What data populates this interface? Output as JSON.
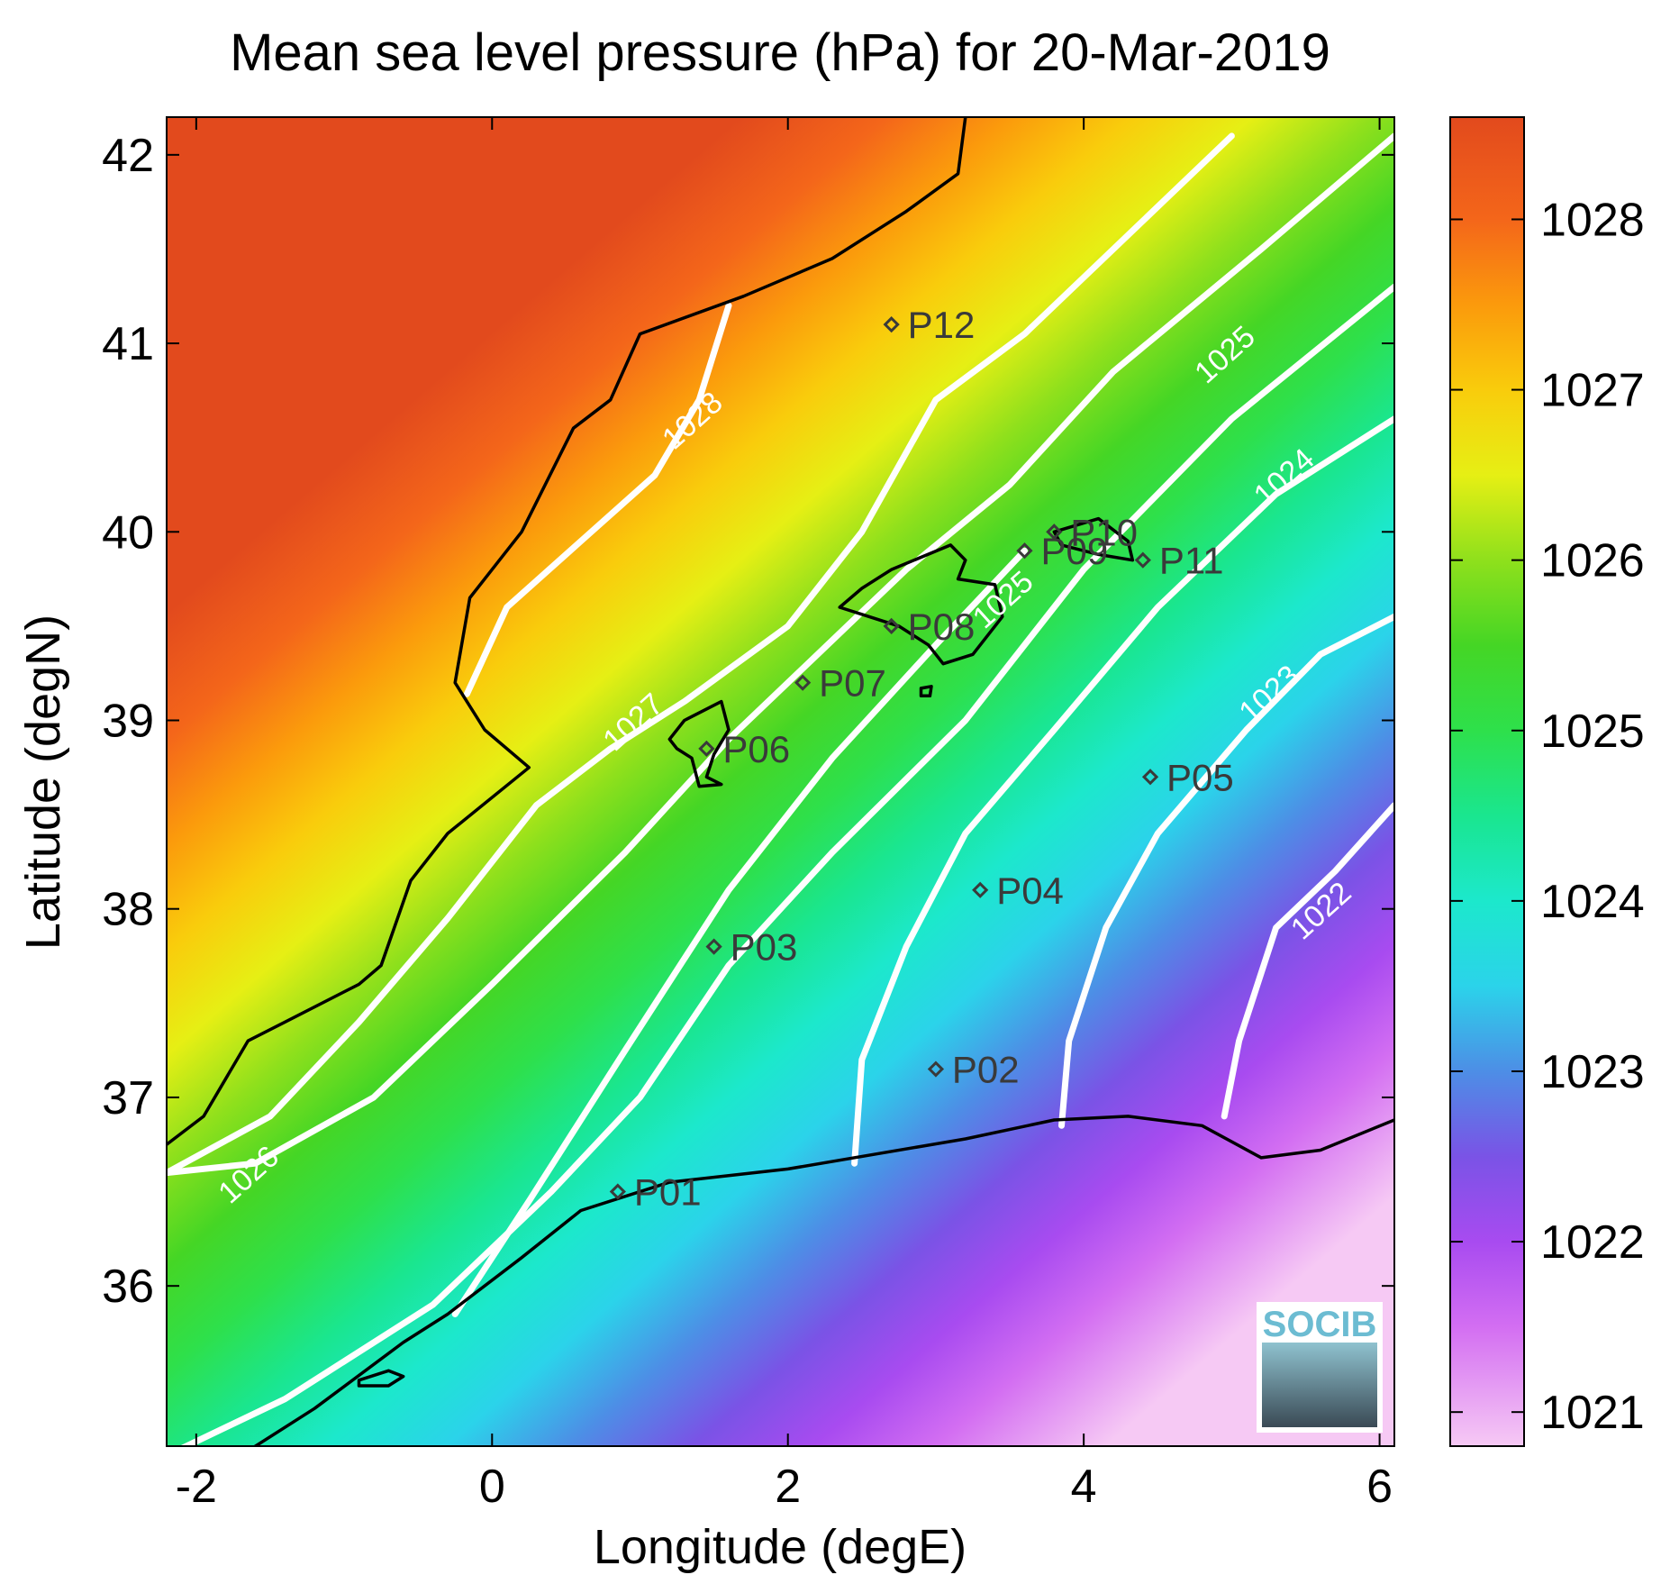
{
  "chart_data": {
    "type": "heatmap",
    "title": "Mean sea level pressure (hPa) for 20-Mar-2019",
    "xlabel": "Longitude (degE)",
    "ylabel": "Latitude (degN)",
    "xlim": [
      -2.2,
      6.1
    ],
    "ylim": [
      35.15,
      42.2
    ],
    "x_ticks": [
      -2,
      0,
      2,
      4,
      6
    ],
    "y_ticks": [
      36,
      37,
      38,
      39,
      40,
      41,
      42
    ],
    "colorbar": {
      "range": [
        1020.8,
        1028.6
      ],
      "ticks": [
        1021,
        1022,
        1023,
        1024,
        1025,
        1026,
        1027,
        1028
      ],
      "colors": [
        {
          "value": 1020.8,
          "color": "#f6c9f4"
        },
        {
          "value": 1021.5,
          "color": "#d36ef2"
        },
        {
          "value": 1022.0,
          "color": "#a84bf0"
        },
        {
          "value": 1022.5,
          "color": "#7a53e6"
        },
        {
          "value": 1023.0,
          "color": "#4d8ee6"
        },
        {
          "value": 1023.5,
          "color": "#2bd3ea"
        },
        {
          "value": 1024.0,
          "color": "#1ce8cc"
        },
        {
          "value": 1024.5,
          "color": "#1ae68f"
        },
        {
          "value": 1025.0,
          "color": "#2ee04b"
        },
        {
          "value": 1025.5,
          "color": "#45d625"
        },
        {
          "value": 1026.0,
          "color": "#8fe01c"
        },
        {
          "value": 1026.5,
          "color": "#e6ef14"
        },
        {
          "value": 1027.0,
          "color": "#f9cc0c"
        },
        {
          "value": 1027.5,
          "color": "#fb9a0c"
        },
        {
          "value": 1028.0,
          "color": "#f4661a"
        },
        {
          "value": 1028.6,
          "color": "#e24a1d"
        }
      ]
    },
    "contours": [
      {
        "label": "1028",
        "points": [
          [
            -0.17,
            39.14
          ],
          [
            0.1,
            39.6
          ],
          [
            0.6,
            39.95
          ],
          [
            1.1,
            40.3
          ],
          [
            1.4,
            40.7
          ],
          [
            1.6,
            41.2
          ]
        ],
        "label_at": [
          1.4,
          40.55
        ]
      },
      {
        "label": "1027",
        "points": [
          [
            -2.2,
            36.6
          ],
          [
            -1.5,
            36.9
          ],
          [
            -0.9,
            37.4
          ],
          [
            -0.3,
            37.95
          ],
          [
            0.3,
            38.55
          ],
          [
            0.8,
            38.85
          ],
          [
            1.3,
            39.1
          ],
          [
            2.0,
            39.5
          ],
          [
            2.5,
            40.0
          ],
          [
            3.0,
            40.7
          ],
          [
            3.6,
            41.05
          ],
          [
            4.2,
            41.5
          ],
          [
            5.0,
            42.1
          ]
        ],
        "label_at": [
          1.0,
          38.95
        ]
      },
      {
        "label": "1026",
        "points": [
          [
            -2.2,
            36.6
          ],
          [
            -1.6,
            36.65
          ],
          [
            -0.8,
            37.0
          ],
          [
            0.0,
            37.6
          ],
          [
            0.9,
            38.3
          ],
          [
            1.6,
            38.9
          ],
          [
            2.2,
            39.35
          ],
          [
            2.8,
            39.8
          ],
          [
            3.5,
            40.25
          ],
          [
            4.2,
            40.85
          ],
          [
            5.2,
            41.5
          ],
          [
            6.1,
            42.1
          ]
        ],
        "label_at": [
          -1.6,
          36.55
        ]
      },
      {
        "label": "1025",
        "points": [
          [
            -2.2,
            35.1
          ],
          [
            -1.4,
            35.4
          ],
          [
            -0.4,
            35.9
          ],
          [
            0.4,
            36.5
          ],
          [
            1.0,
            37.0
          ],
          [
            1.6,
            37.7
          ],
          [
            2.3,
            38.3
          ],
          [
            3.2,
            39.0
          ],
          [
            4.0,
            39.8
          ],
          [
            5.0,
            40.6
          ],
          [
            6.1,
            41.3
          ]
        ],
        "label_at": [
          5.0,
          40.9
        ]
      },
      {
        "label": "1025",
        "points": [
          [
            -0.25,
            35.85
          ],
          [
            0.25,
            36.45
          ],
          [
            0.9,
            37.25
          ],
          [
            1.6,
            38.1
          ],
          [
            2.3,
            38.8
          ],
          [
            3.0,
            39.4
          ],
          [
            3.6,
            39.9
          ]
        ],
        "label_at": [
          3.5,
          39.6
        ]
      },
      {
        "label": "1024",
        "points": [
          [
            2.45,
            36.65
          ],
          [
            2.5,
            37.2
          ],
          [
            2.8,
            37.8
          ],
          [
            3.2,
            38.4
          ],
          [
            3.8,
            38.95
          ],
          [
            4.5,
            39.6
          ],
          [
            5.3,
            40.2
          ],
          [
            6.1,
            40.6
          ]
        ],
        "label_at": [
          5.4,
          40.25
        ]
      },
      {
        "label": "1023",
        "points": [
          [
            3.85,
            36.85
          ],
          [
            3.9,
            37.3
          ],
          [
            4.15,
            37.9
          ],
          [
            4.5,
            38.4
          ],
          [
            5.1,
            38.95
          ],
          [
            5.6,
            39.35
          ],
          [
            6.1,
            39.55
          ]
        ],
        "label_at": [
          5.3,
          39.1
        ]
      },
      {
        "label": "1022",
        "points": [
          [
            4.95,
            36.9
          ],
          [
            5.05,
            37.3
          ],
          [
            5.3,
            37.9
          ],
          [
            5.7,
            38.2
          ],
          [
            6.1,
            38.55
          ]
        ],
        "label_at": [
          5.65,
          37.95
        ]
      }
    ],
    "stations": [
      {
        "name": "P01",
        "lon": 0.85,
        "lat": 36.5
      },
      {
        "name": "P02",
        "lon": 3.0,
        "lat": 37.15
      },
      {
        "name": "P03",
        "lon": 1.5,
        "lat": 37.8
      },
      {
        "name": "P04",
        "lon": 3.3,
        "lat": 38.1
      },
      {
        "name": "P05",
        "lon": 4.45,
        "lat": 38.7
      },
      {
        "name": "P06",
        "lon": 1.45,
        "lat": 38.85
      },
      {
        "name": "P07",
        "lon": 2.1,
        "lat": 39.2
      },
      {
        "name": "P08",
        "lon": 2.7,
        "lat": 39.5
      },
      {
        "name": "P09",
        "lon": 3.6,
        "lat": 39.9
      },
      {
        "name": "P10",
        "lon": 3.8,
        "lat": 40.0
      },
      {
        "name": "P11",
        "lon": 4.4,
        "lat": 39.85
      },
      {
        "name": "P12",
        "lon": 2.7,
        "lat": 41.1
      }
    ],
    "coastlines": [
      {
        "name": "iberian-coast",
        "points": [
          [
            3.2,
            42.2
          ],
          [
            3.15,
            41.9
          ],
          [
            2.8,
            41.7
          ],
          [
            2.3,
            41.45
          ],
          [
            1.7,
            41.25
          ],
          [
            1.0,
            41.05
          ],
          [
            0.8,
            40.7
          ],
          [
            0.55,
            40.55
          ],
          [
            0.2,
            40.0
          ],
          [
            -0.15,
            39.65
          ],
          [
            -0.25,
            39.2
          ],
          [
            -0.05,
            38.95
          ],
          [
            0.25,
            38.75
          ],
          [
            -0.3,
            38.4
          ],
          [
            -0.55,
            38.15
          ],
          [
            -0.75,
            37.7
          ],
          [
            -0.9,
            37.6
          ],
          [
            -1.4,
            37.4
          ],
          [
            -1.65,
            37.3
          ],
          [
            -1.95,
            36.9
          ],
          [
            -2.2,
            36.75
          ]
        ]
      },
      {
        "name": "african-coast",
        "points": [
          [
            -1.7,
            35.1
          ],
          [
            -1.2,
            35.35
          ],
          [
            -0.6,
            35.7
          ],
          [
            -0.3,
            35.85
          ],
          [
            0.2,
            36.15
          ],
          [
            0.6,
            36.4
          ],
          [
            1.2,
            36.55
          ],
          [
            2.0,
            36.62
          ],
          [
            2.6,
            36.7
          ],
          [
            3.2,
            36.78
          ],
          [
            3.8,
            36.88
          ],
          [
            4.3,
            36.9
          ],
          [
            4.8,
            36.85
          ],
          [
            5.2,
            36.68
          ],
          [
            5.6,
            36.72
          ],
          [
            6.1,
            36.88
          ]
        ]
      },
      {
        "name": "alboran-islet",
        "closed": true,
        "points": [
          [
            -0.9,
            35.5
          ],
          [
            -0.7,
            35.55
          ],
          [
            -0.6,
            35.52
          ],
          [
            -0.7,
            35.47
          ],
          [
            -0.9,
            35.47
          ]
        ]
      },
      {
        "name": "ibiza-formentera",
        "closed": true,
        "points": [
          [
            1.2,
            38.9
          ],
          [
            1.3,
            39.0
          ],
          [
            1.55,
            39.1
          ],
          [
            1.6,
            38.95
          ],
          [
            1.5,
            38.82
          ],
          [
            1.45,
            38.7
          ],
          [
            1.55,
            38.66
          ],
          [
            1.4,
            38.65
          ],
          [
            1.35,
            38.8
          ],
          [
            1.25,
            38.85
          ]
        ]
      },
      {
        "name": "mallorca",
        "closed": true,
        "points": [
          [
            2.35,
            39.6
          ],
          [
            2.5,
            39.7
          ],
          [
            2.7,
            39.8
          ],
          [
            3.1,
            39.93
          ],
          [
            3.2,
            39.85
          ],
          [
            3.15,
            39.75
          ],
          [
            3.4,
            39.72
          ],
          [
            3.45,
            39.55
          ],
          [
            3.25,
            39.35
          ],
          [
            3.05,
            39.3
          ],
          [
            2.95,
            39.4
          ],
          [
            2.75,
            39.5
          ],
          [
            2.55,
            39.55
          ]
        ]
      },
      {
        "name": "cabrera",
        "closed": true,
        "points": [
          [
            2.9,
            39.17
          ],
          [
            2.97,
            39.18
          ],
          [
            2.96,
            39.13
          ],
          [
            2.9,
            39.13
          ]
        ]
      },
      {
        "name": "menorca",
        "closed": true,
        "points": [
          [
            3.8,
            40.0
          ],
          [
            4.1,
            40.07
          ],
          [
            4.3,
            39.95
          ],
          [
            4.33,
            39.85
          ],
          [
            4.1,
            39.88
          ],
          [
            3.85,
            39.93
          ]
        ]
      }
    ]
  },
  "logo": {
    "text": "SOCIB"
  }
}
